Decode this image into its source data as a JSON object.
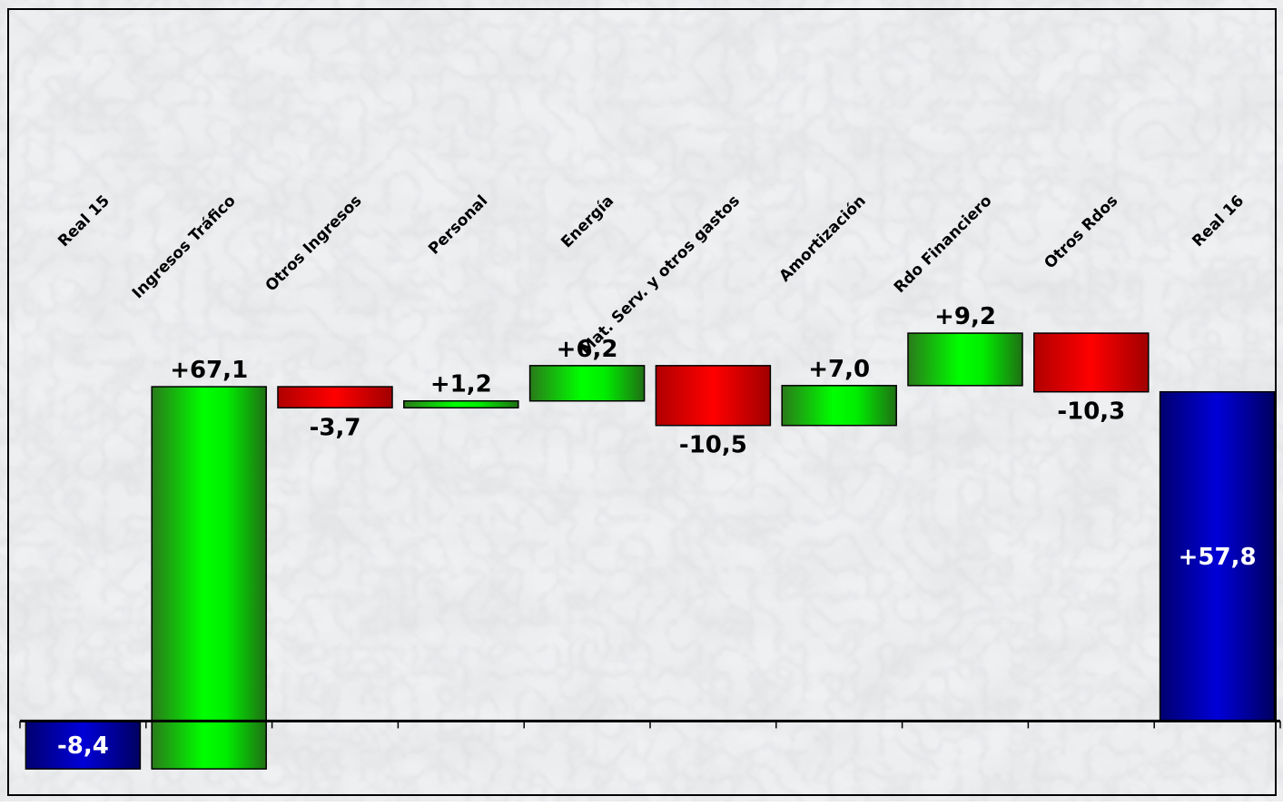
{
  "chart_data": {
    "type": "waterfall",
    "title": "",
    "xlabel": "",
    "ylabel": "",
    "categories": [
      "Real 15",
      "Ingresos Tráfico",
      "Otros Ingresos",
      "Personal",
      "Energía",
      "Mat. Serv. y otros gastos",
      "Amortización",
      "Rdo Financiero",
      "Otros Rdos",
      "Real 16"
    ],
    "values": [
      -8.4,
      67.1,
      -3.7,
      1.2,
      6.2,
      -10.5,
      7.0,
      9.2,
      -10.3,
      57.8
    ],
    "labels": [
      "-8,4",
      "+67,1",
      "-3,7",
      "+1,2",
      "+6,2",
      "-10,5",
      "+7,0",
      "+9,2",
      "-10,3",
      "+57,8"
    ],
    "bar_kinds": [
      "total",
      "delta",
      "delta",
      "delta",
      "delta",
      "delta",
      "delta",
      "delta",
      "delta",
      "total"
    ],
    "ylim": [
      -13,
      125
    ],
    "grid": false,
    "legend": "none",
    "colors": {
      "total": "#0000c8",
      "increase": "#00ff00",
      "decrease": "#ff0000",
      "axis": "#000000",
      "total_label": "#ffffff",
      "delta_label": "#000000"
    }
  }
}
